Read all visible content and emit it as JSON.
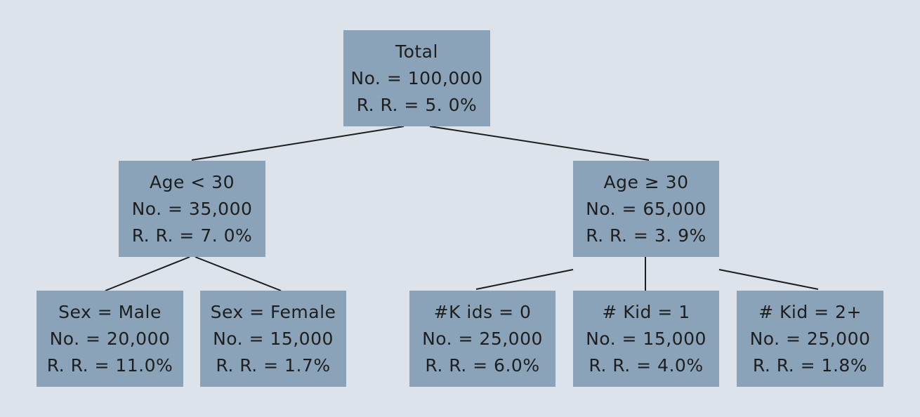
{
  "colors": {
    "background": "#dce3ea",
    "node_fill": "#8aa3b8",
    "edge": "#1e1e1e",
    "text": "#1e1e1e"
  },
  "nodes": {
    "total": {
      "title": "Total",
      "count": "No. = 100,000",
      "rate": "R. R. = 5. 0%"
    },
    "age_lt": {
      "title": "Age < 30",
      "count": "No. = 35,000",
      "rate": "R. R. = 7. 0%"
    },
    "age_ge": {
      "title": "Age ≥ 30",
      "count": "No. = 65,000",
      "rate": "R. R. = 3. 9%"
    },
    "male": {
      "title": "Sex = Male",
      "count": "No. = 20,000",
      "rate": "R. R. = 11.0%"
    },
    "female": {
      "title": "Sex = Female",
      "count": "No. = 15,000",
      "rate": "R. R. = 1.7%"
    },
    "kid0": {
      "title": "#K ids = 0",
      "count": "No. = 25,000",
      "rate": "R. R. = 6.0%"
    },
    "kid1": {
      "title": "# Kid = 1",
      "count": "No. = 15,000",
      "rate": "R. R. = 4.0%"
    },
    "kid2": {
      "title": "# Kid  = 2+",
      "count": "No. = 25,000",
      "rate": "R. R. = 1.8%"
    }
  }
}
